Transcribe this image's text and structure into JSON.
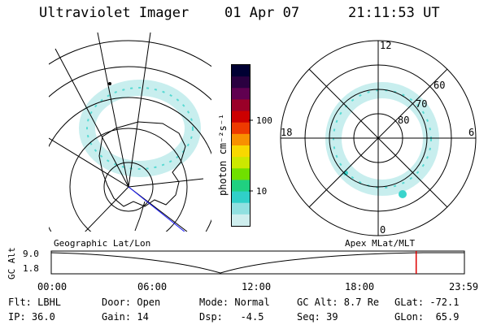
{
  "header": {
    "instrument": "Ultraviolet Imager",
    "date": "01 Apr 07",
    "time": "21:11:53 UT"
  },
  "colorbar": {
    "unit_label": "photon cm⁻²s⁻¹",
    "ticks": [
      "100",
      "10"
    ],
    "colors": [
      "#000033",
      "#2a0040",
      "#600050",
      "#9a0028",
      "#cc0000",
      "#ee3a00",
      "#f89000",
      "#f8d800",
      "#cce800",
      "#70e000",
      "#20d080",
      "#30d0c8",
      "#90e0e0",
      "#cfeeee"
    ]
  },
  "polar": {
    "mlt_labels": [
      "12",
      "18",
      "6",
      "0"
    ],
    "lat_labels": [
      "60",
      "70",
      "80"
    ]
  },
  "track": {
    "left_label": "Geographic Lat/Lon",
    "right_label": "Apex MLat/MLT",
    "y_axis_label": "GC Alt",
    "y_ticks": [
      "9.0",
      "1.8"
    ],
    "x_ticks": [
      "00:00",
      "06:00",
      "12:00",
      "18:00",
      "23:59"
    ],
    "cursor_color": "#dd0000",
    "cursor_time_hours": 21.2
  },
  "info": {
    "row1": [
      "Flt: LBHL",
      "Door: Open",
      "Mode: Normal",
      "GC Alt: 8.7 Re",
      "GLat: -72.1"
    ],
    "row2": [
      "IP: 36.0",
      "Gain: 14",
      "Dsp:   -4.5",
      "Seq: 39",
      "GLon:  65.9"
    ]
  }
}
